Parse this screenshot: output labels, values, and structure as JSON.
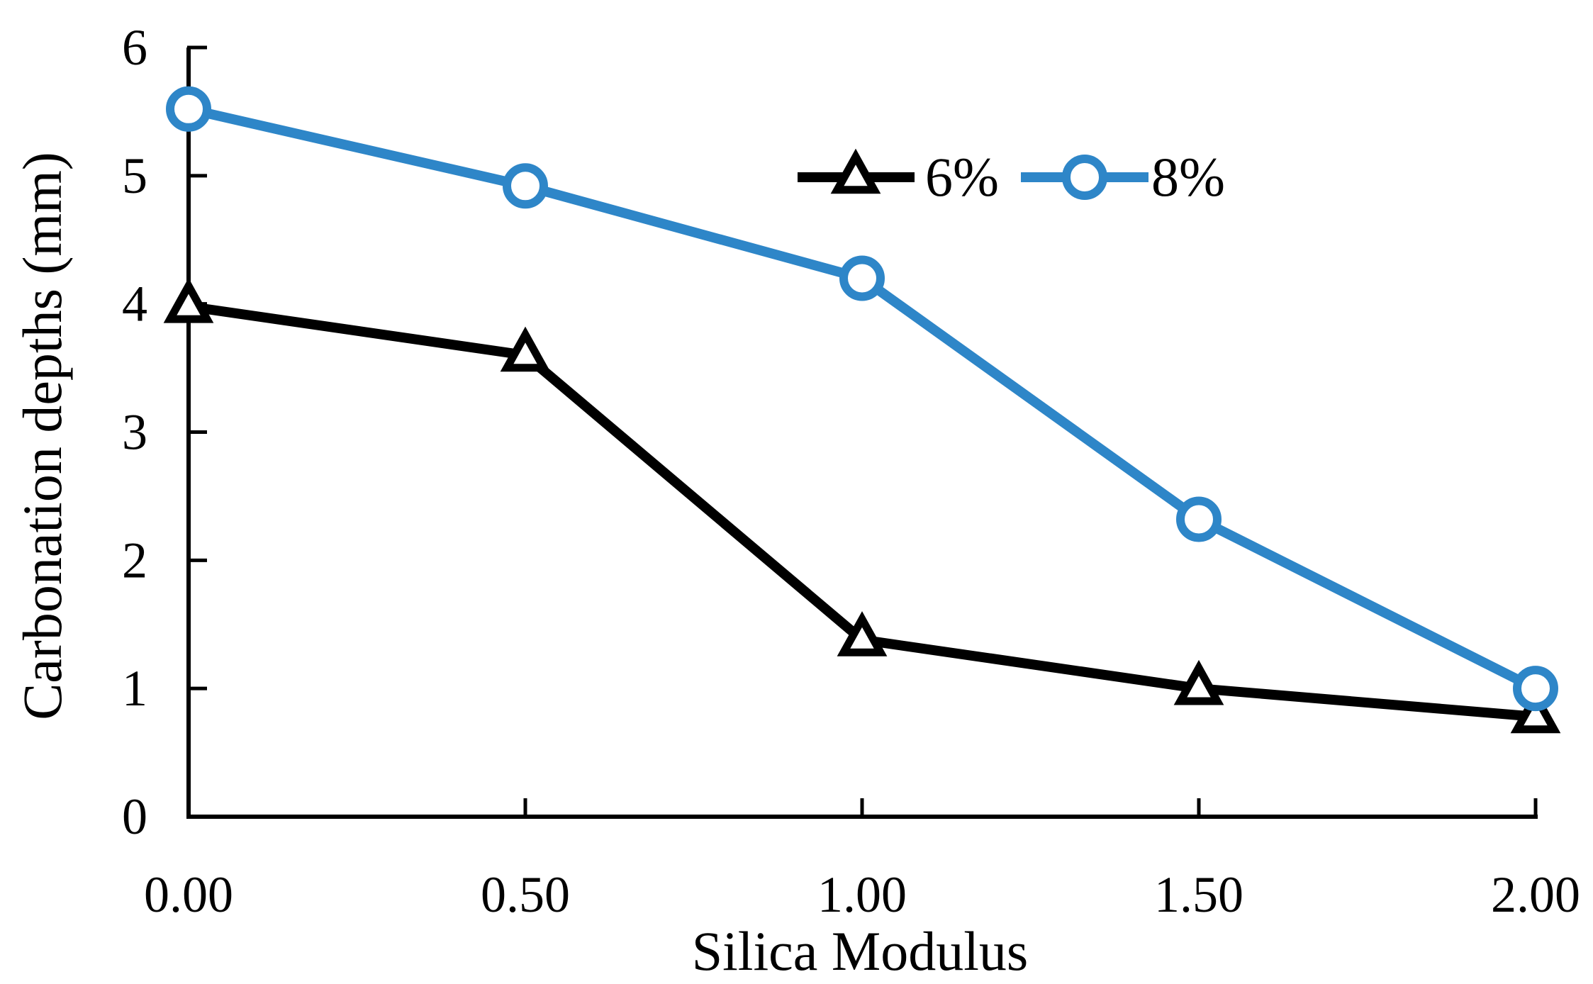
{
  "chart_data": {
    "type": "line",
    "title": "",
    "xlabel": "Silica Modulus",
    "ylabel": "Carbonation depths (mm)",
    "x": [
      0.0,
      0.5,
      1.0,
      1.5,
      2.0
    ],
    "x_tick_labels": [
      "0.00",
      "0.50",
      "1.00",
      "1.50",
      "2.00"
    ],
    "y_ticks": [
      0,
      1,
      2,
      3,
      4,
      5,
      6
    ],
    "y_tick_labels": [
      "0",
      "1",
      "2",
      "3",
      "4",
      "5",
      "6"
    ],
    "xlim": [
      0,
      2
    ],
    "ylim": [
      0,
      6
    ],
    "grid": false,
    "legend_position": "top-right",
    "series": [
      {
        "name": "6%",
        "marker": "triangle",
        "color": "#000000",
        "values": [
          3.98,
          3.6,
          1.38,
          1.0,
          0.78
        ]
      },
      {
        "name": "8%",
        "marker": "circle",
        "color": "#2E86C8",
        "values": [
          5.52,
          4.92,
          4.2,
          2.32,
          1.0
        ]
      }
    ]
  }
}
